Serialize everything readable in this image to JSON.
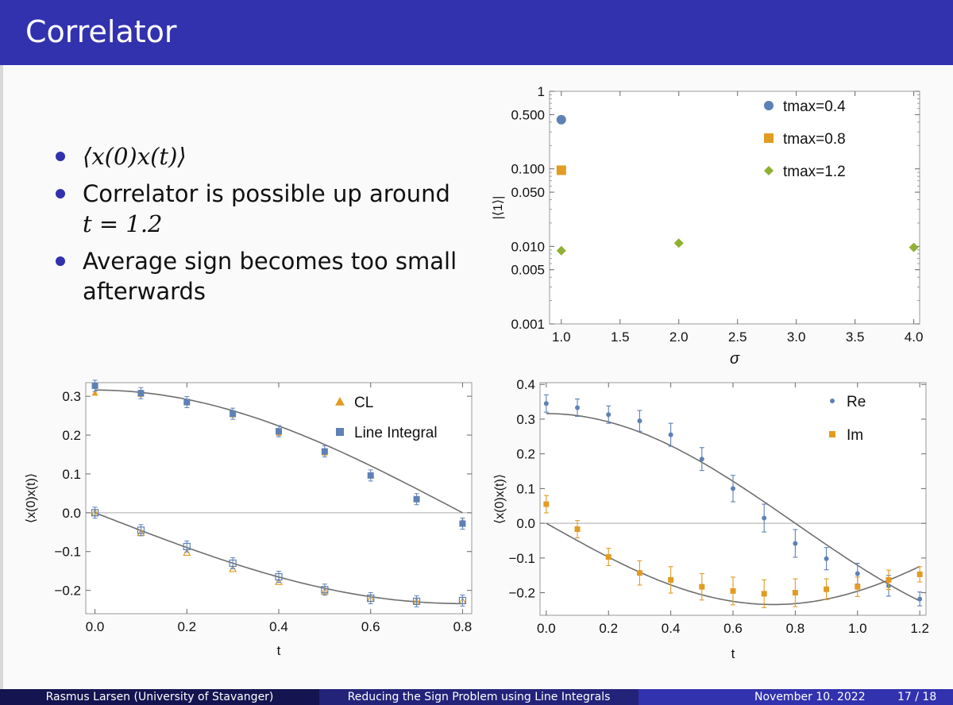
{
  "slide": {
    "title": "Correlator",
    "bullets": [
      {
        "math": "⟨x(0)x(t)⟩"
      },
      {
        "text": "Correlator is possible up around",
        "math": "t = 1.2"
      },
      {
        "text": "Average sign becomes too small afterwards"
      }
    ]
  },
  "footer": {
    "author": "Rasmus Larsen  (University of Stavanger)",
    "talk_title": "Reducing the Sign Problem using Line Integrals",
    "date": "November 10. 2022",
    "page": "17 / 18"
  },
  "colors": {
    "header": "#3232ae",
    "blue": "#5e81b5",
    "orange": "#e19c24",
    "green": "#8fb032",
    "curve": "#6e6e6e"
  },
  "chart_data": [
    {
      "type": "scatter",
      "yscale": "log",
      "xlabel": "σ",
      "ylabel": "|⟨1⟩|",
      "xlim": [
        0.9,
        4.05
      ],
      "ylim": [
        0.001,
        1
      ],
      "xticks": [
        "1.0",
        "1.5",
        "2.0",
        "2.5",
        "3.0",
        "3.5",
        "4.0"
      ],
      "xtick_values": [
        1.0,
        1.5,
        2.0,
        2.5,
        3.0,
        3.5,
        4.0
      ],
      "yticks": [
        "1",
        "0.500",
        "0.100",
        "0.050",
        "0.010",
        "0.005",
        "0.001"
      ],
      "ytick_values": [
        1,
        0.5,
        0.1,
        0.05,
        0.01,
        0.005,
        0.001
      ],
      "legend_position": "top-right",
      "series": [
        {
          "name": "tmax=0.4",
          "marker": "circle",
          "x": [
            1.0
          ],
          "y": [
            0.43
          ]
        },
        {
          "name": "tmax=0.8",
          "marker": "square",
          "x": [
            1.0
          ],
          "y": [
            0.096
          ]
        },
        {
          "name": "tmax=1.2",
          "marker": "diamond",
          "x": [
            1.0,
            2.0,
            4.0
          ],
          "y": [
            0.0088,
            0.011,
            0.0097
          ]
        }
      ]
    },
    {
      "type": "scatter",
      "xlabel": "t",
      "ylabel": "⟨x(0)x(t)⟩",
      "xlim": [
        -0.02,
        0.82
      ],
      "ylim": [
        -0.26,
        0.335
      ],
      "xticks": [
        "0.0",
        "0.2",
        "0.4",
        "0.6",
        "0.8"
      ],
      "xtick_values": [
        0,
        0.2,
        0.4,
        0.6,
        0.8
      ],
      "yticks": [
        "0.3",
        "0.2",
        "0.1",
        "0.0",
        "−0.1",
        "−0.2"
      ],
      "ytick_values": [
        0.3,
        0.2,
        0.1,
        0.0,
        -0.1,
        -0.2
      ],
      "legend_position": "top-right",
      "series": [
        {
          "name": "CL",
          "marker": "triangle",
          "x": [
            0,
            0.1,
            0.2,
            0.3,
            0.4,
            0.5,
            0.6,
            0.7,
            0.8
          ],
          "y": [
            0.308,
            0.305,
            0.283,
            0.252,
            0.205,
            0.154,
            0.095,
            0.035,
            -0.022
          ]
        },
        {
          "name": "Line Integral",
          "marker": "square",
          "x": [
            0,
            0.1,
            0.2,
            0.3,
            0.4,
            0.5,
            0.6,
            0.7,
            0.8
          ],
          "y": [
            0.327,
            0.308,
            0.285,
            0.255,
            0.21,
            0.158,
            0.096,
            0.035,
            -0.028
          ]
        },
        {
          "marker": "triangle-open",
          "x": [
            0,
            0.1,
            0.2,
            0.3,
            0.4,
            0.5,
            0.6,
            0.7,
            0.8
          ],
          "y": [
            0.0,
            -0.052,
            -0.103,
            -0.145,
            -0.178,
            -0.203,
            -0.222,
            -0.228,
            -0.228
          ]
        },
        {
          "marker": "square-open",
          "x": [
            0,
            0.1,
            0.2,
            0.3,
            0.4,
            0.5,
            0.6,
            0.7,
            0.8
          ],
          "y": [
            0.0,
            -0.045,
            -0.087,
            -0.13,
            -0.165,
            -0.198,
            -0.22,
            -0.228,
            -0.226
          ]
        }
      ]
    },
    {
      "type": "scatter",
      "xlabel": "t",
      "ylabel": "⟨x(0)x(t)⟩",
      "xlim": [
        -0.02,
        1.22
      ],
      "ylim": [
        -0.265,
        0.405
      ],
      "xticks": [
        "0.0",
        "0.2",
        "0.4",
        "0.6",
        "0.8",
        "1.0",
        "1.2"
      ],
      "xtick_values": [
        0,
        0.2,
        0.4,
        0.6,
        0.8,
        1.0,
        1.2
      ],
      "yticks": [
        "0.4",
        "0.3",
        "0.2",
        "0.1",
        "0.0",
        "−0.1",
        "−0.2"
      ],
      "ytick_values": [
        0.4,
        0.3,
        0.2,
        0.1,
        0.0,
        -0.1,
        -0.2
      ],
      "legend_position": "top-right",
      "series": [
        {
          "name": "Re",
          "marker": "circle",
          "x": [
            0,
            0.1,
            0.2,
            0.3,
            0.4,
            0.5,
            0.6,
            0.7,
            0.8,
            0.9,
            1.0,
            1.1,
            1.2
          ],
          "y": [
            0.345,
            0.333,
            0.313,
            0.295,
            0.255,
            0.185,
            0.1,
            0.015,
            -0.058,
            -0.102,
            -0.145,
            -0.18,
            -0.218
          ],
          "err": [
            0.025,
            0.025,
            0.025,
            0.03,
            0.033,
            0.033,
            0.038,
            0.04,
            0.04,
            0.032,
            0.03,
            0.03,
            0.02
          ]
        },
        {
          "name": "Im",
          "marker": "square",
          "x": [
            0,
            0.1,
            0.2,
            0.3,
            0.4,
            0.5,
            0.6,
            0.7,
            0.8,
            0.9,
            1.0,
            1.1,
            1.2
          ],
          "y": [
            0.055,
            -0.017,
            -0.097,
            -0.143,
            -0.163,
            -0.183,
            -0.195,
            -0.203,
            -0.2,
            -0.19,
            -0.183,
            -0.163,
            -0.147
          ],
          "err": [
            0.025,
            0.025,
            0.025,
            0.035,
            0.038,
            0.038,
            0.04,
            0.04,
            0.04,
            0.03,
            0.028,
            0.028,
            0.022
          ]
        }
      ]
    }
  ]
}
